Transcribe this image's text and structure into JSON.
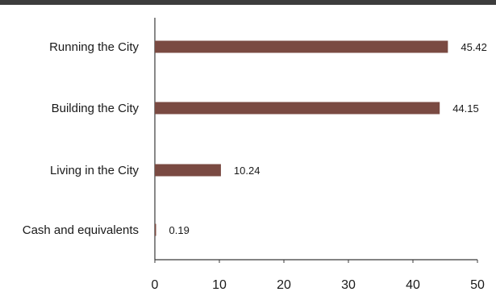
{
  "colors": {
    "bar": "#7a4a42",
    "axis": "#3a3a3a",
    "top_rule": "#3d3d3d"
  },
  "chart_data": {
    "type": "bar",
    "orientation": "horizontal",
    "categories": [
      "Running the City",
      "Building the City",
      "Living in the City",
      "Cash and equivalents"
    ],
    "values": [
      45.42,
      44.15,
      10.24,
      0.19
    ],
    "value_labels": [
      "45.42",
      "44.15",
      "10.24",
      "0.19"
    ],
    "xlim": [
      0,
      50
    ],
    "xticks": [
      0,
      10,
      20,
      30,
      40,
      50
    ],
    "xtick_labels": [
      "0",
      "10",
      "20",
      "30",
      "40",
      "50"
    ],
    "grid": false,
    "legend": "none"
  }
}
